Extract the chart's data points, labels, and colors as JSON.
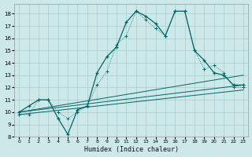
{
  "xlabel": "Humidex (Indice chaleur)",
  "xlim": [
    -0.5,
    23.5
  ],
  "ylim": [
    8,
    18.8
  ],
  "yticks": [
    8,
    9,
    10,
    11,
    12,
    13,
    14,
    15,
    16,
    17,
    18
  ],
  "xticks": [
    0,
    1,
    2,
    3,
    4,
    5,
    6,
    7,
    8,
    9,
    10,
    11,
    12,
    13,
    14,
    15,
    16,
    17,
    18,
    19,
    20,
    21,
    22,
    23
  ],
  "bg_color": "#cde8e8",
  "grid_color": "#a8cccc",
  "line_color": "#006666",
  "line1_y": [
    10,
    10.5,
    11,
    11,
    9.5,
    8.2,
    10.2,
    10.5,
    13.2,
    14.5,
    15.3,
    17.3,
    18.2,
    17.8,
    17.2,
    16.2,
    18.2,
    18.2,
    15.0,
    14.2,
    13.2,
    13.0,
    12.2,
    12.2
  ],
  "line2_y": [
    9.8,
    9.8,
    11,
    11,
    10.0,
    9.5,
    10.0,
    10.5,
    12.2,
    13.3,
    15.5,
    16.2,
    18.2,
    17.5,
    16.8,
    16.2,
    18.2,
    18.2,
    15.0,
    13.5,
    13.8,
    13.2,
    12.0,
    12.0
  ],
  "ref_lines": [
    [
      0,
      10.0,
      23,
      13.0
    ],
    [
      0,
      10.0,
      23,
      12.2
    ],
    [
      0,
      9.8,
      23,
      11.8
    ]
  ]
}
